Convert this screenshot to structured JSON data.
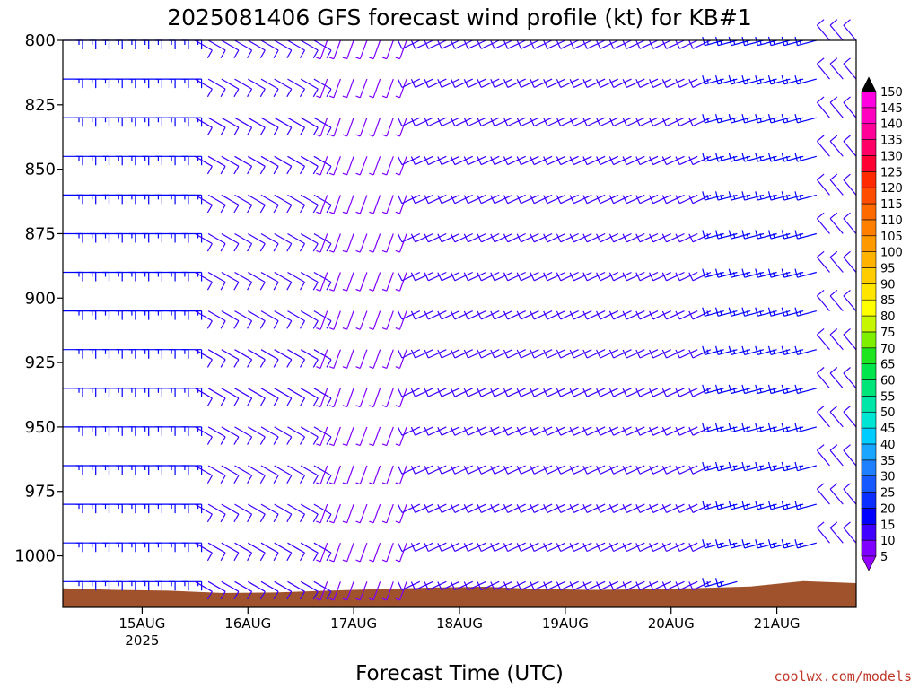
{
  "chart_data": {
    "type": "wind-barb-profile",
    "title": "2025081406 GFS forecast wind profile (kt) for KB#1",
    "xlabel": "Forecast Time (UTC)",
    "ylabel": "",
    "y_axis": {
      "quantity": "pressure (hPa)",
      "inverted": true,
      "ylim": [
        1020,
        800
      ],
      "ticks": [
        800,
        825,
        850,
        875,
        900,
        925,
        950,
        975,
        1000
      ]
    },
    "x_axis": {
      "ticks": [
        {
          "label": "15AUG",
          "sublabel": "2025",
          "date": "2025-08-15T00"
        },
        {
          "label": "16AUG",
          "date": "2025-08-16T00"
        },
        {
          "label": "17AUG",
          "date": "2025-08-17T00"
        },
        {
          "label": "18AUG",
          "date": "2025-08-18T00"
        },
        {
          "label": "19AUG",
          "date": "2025-08-19T00"
        },
        {
          "label": "20AUG",
          "date": "2025-08-20T00"
        },
        {
          "label": "21AUG",
          "date": "2025-08-21T00"
        }
      ],
      "xlim": [
        "2025-08-14T06",
        "2025-08-21T18"
      ],
      "time_step_hours": 3
    },
    "pressure_levels": [
      800,
      815,
      830,
      845,
      860,
      875,
      890,
      905,
      920,
      935,
      950,
      965,
      980,
      995,
      1010
    ],
    "wind_profile_summary": [
      {
        "period": "2025-08-14T06 to 2025-08-15T12",
        "direction_deg": 90,
        "speed_kt": 15
      },
      {
        "period": "2025-08-15T12 to 2025-08-16T18",
        "direction_deg": 120,
        "speed_kt": 12
      },
      {
        "period": "2025-08-16T18 to 2025-08-17T15",
        "direction_deg": 200,
        "speed_kt": 6
      },
      {
        "period": "2025-08-17T15 to 2025-08-20T12",
        "direction_deg": 245,
        "speed_kt": 10
      },
      {
        "period": "2025-08-20T12 to 2025-08-21T12",
        "direction_deg": 255,
        "speed_kt": 17
      },
      {
        "period": "2025-08-21T12 to 2025-08-21T18",
        "direction_deg": 320,
        "speed_kt": 10
      }
    ],
    "surface_pressure": [
      {
        "date": "2025-08-14T06",
        "hPa": 1012.6
      },
      {
        "date": "2025-08-14T18",
        "hPa": 1013.2
      },
      {
        "date": "2025-08-15T06",
        "hPa": 1013.5
      },
      {
        "date": "2025-08-15T18",
        "hPa": 1014.4
      },
      {
        "date": "2025-08-16T06",
        "hPa": 1014.2
      },
      {
        "date": "2025-08-16T18",
        "hPa": 1013.5
      },
      {
        "date": "2025-08-17T06",
        "hPa": 1012.9
      },
      {
        "date": "2025-08-17T18",
        "hPa": 1012.3
      },
      {
        "date": "2025-08-18T06",
        "hPa": 1012.0
      },
      {
        "date": "2025-08-18T18",
        "hPa": 1012.9
      },
      {
        "date": "2025-08-19T06",
        "hPa": 1013.2
      },
      {
        "date": "2025-08-19T18",
        "hPa": 1013.0
      },
      {
        "date": "2025-08-20T06",
        "hPa": 1012.5
      },
      {
        "date": "2025-08-20T18",
        "hPa": 1011.9
      },
      {
        "date": "2025-08-21T06",
        "hPa": 1009.8
      },
      {
        "date": "2025-08-21T18",
        "hPa": 1010.6
      }
    ],
    "colorbar": {
      "label": "kt",
      "levels": [
        5,
        10,
        15,
        20,
        25,
        30,
        35,
        40,
        45,
        50,
        55,
        60,
        65,
        70,
        75,
        80,
        85,
        90,
        95,
        100,
        105,
        110,
        115,
        120,
        125,
        130,
        135,
        140,
        145,
        150
      ],
      "colors": [
        "#7f00ff",
        "#3f00ff",
        "#0000ff",
        "#0a2fff",
        "#1559ff",
        "#1e7fff",
        "#1aa6ff",
        "#00ccff",
        "#00e5d4",
        "#00e5a8",
        "#00e57a",
        "#00e54c",
        "#1fe51f",
        "#7fef00",
        "#c7f700",
        "#ffff00",
        "#ffe500",
        "#ffcc00",
        "#ffb300",
        "#ff9900",
        "#ff8000",
        "#ff6a00",
        "#ff4d00",
        "#ff2a00",
        "#ff0033",
        "#ff0066",
        "#ff0099",
        "#ff00c0",
        "#ff00e0"
      ],
      "under_color": "#9400ff",
      "over_color": "#000000"
    },
    "terrain_color": "#a0522d",
    "credit": "coolwx.com/models"
  }
}
